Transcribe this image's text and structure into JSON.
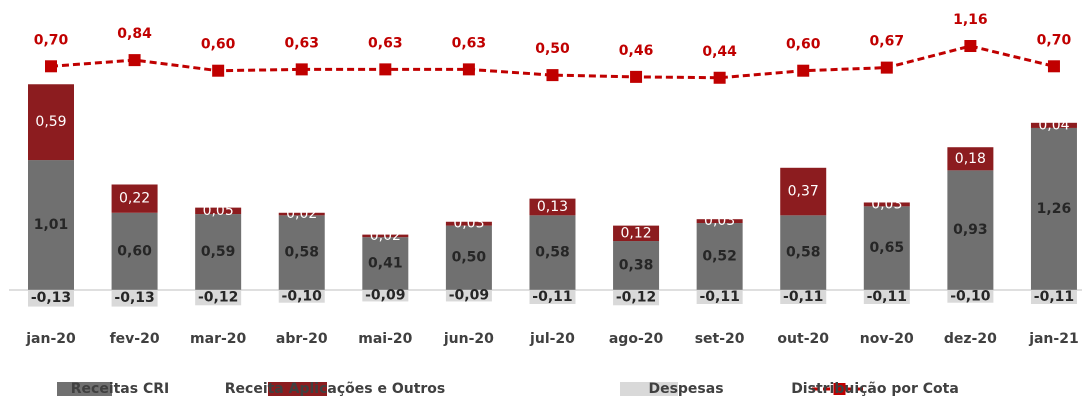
{
  "chart_data": {
    "type": "bar",
    "categories": [
      "jan-20",
      "fev-20",
      "mar-20",
      "abr-20",
      "mai-20",
      "jun-20",
      "jul-20",
      "ago-20",
      "set-20",
      "out-20",
      "nov-20",
      "dez-20",
      "jan-21"
    ],
    "ylim": [
      -0.25,
      2.1
    ],
    "y2lim": [
      -5.1,
      1.75
    ],
    "legend": "bottom",
    "series": [
      {
        "name": "Receitas CRI",
        "color": "#707070",
        "stack": true,
        "values": [
          1.01,
          0.6,
          0.59,
          0.58,
          0.41,
          0.5,
          0.58,
          0.38,
          0.52,
          0.58,
          0.65,
          0.93,
          1.26
        ],
        "value_labels": [
          "1,01",
          "0,60",
          "0,59",
          "0,58",
          "0,41",
          "0,50",
          "0,58",
          "0,38",
          "0,52",
          "0,58",
          "0,65",
          "0,93",
          "1,26"
        ]
      },
      {
        "name": "Receita Aplicações e Outros",
        "color": "#8c1c1f",
        "stack": true,
        "values": [
          0.59,
          0.22,
          0.05,
          0.02,
          0.02,
          0.03,
          0.13,
          0.12,
          0.03,
          0.37,
          0.03,
          0.18,
          0.04
        ],
        "value_labels": [
          "0,59",
          "0,22",
          "0,05",
          "0,02",
          "0,02",
          "0,03",
          "0,13",
          "0,12",
          "0,03",
          "0,37",
          "0,03",
          "0,18",
          "0,04"
        ]
      },
      {
        "name": "Despesas",
        "color": "#d9d9d9",
        "stack": true,
        "values": [
          -0.13,
          -0.13,
          -0.12,
          -0.1,
          -0.09,
          -0.09,
          -0.11,
          -0.12,
          -0.11,
          -0.11,
          -0.11,
          -0.1,
          -0.11
        ],
        "value_labels": [
          "-0,13",
          "-0,13",
          "-0,12",
          "-0,10",
          "-0,09",
          "-0,09",
          "-0,11",
          "-0,12",
          "-0,11",
          "-0,11",
          "-0,11",
          "-0,10",
          "-0,11"
        ]
      },
      {
        "name": "Distribuição por Cota",
        "color": "#c00000",
        "type": "line",
        "axis": "y2",
        "values": [
          0.7,
          0.84,
          0.6,
          0.63,
          0.63,
          0.63,
          0.5,
          0.46,
          0.44,
          0.6,
          0.67,
          1.16,
          0.7
        ],
        "value_labels": [
          "0,70",
          "0,84",
          "0,60",
          "0,63",
          "0,63",
          "0,63",
          "0,50",
          "0,46",
          "0,44",
          "0,60",
          "0,67",
          "1,16",
          "0,70"
        ]
      }
    ]
  }
}
